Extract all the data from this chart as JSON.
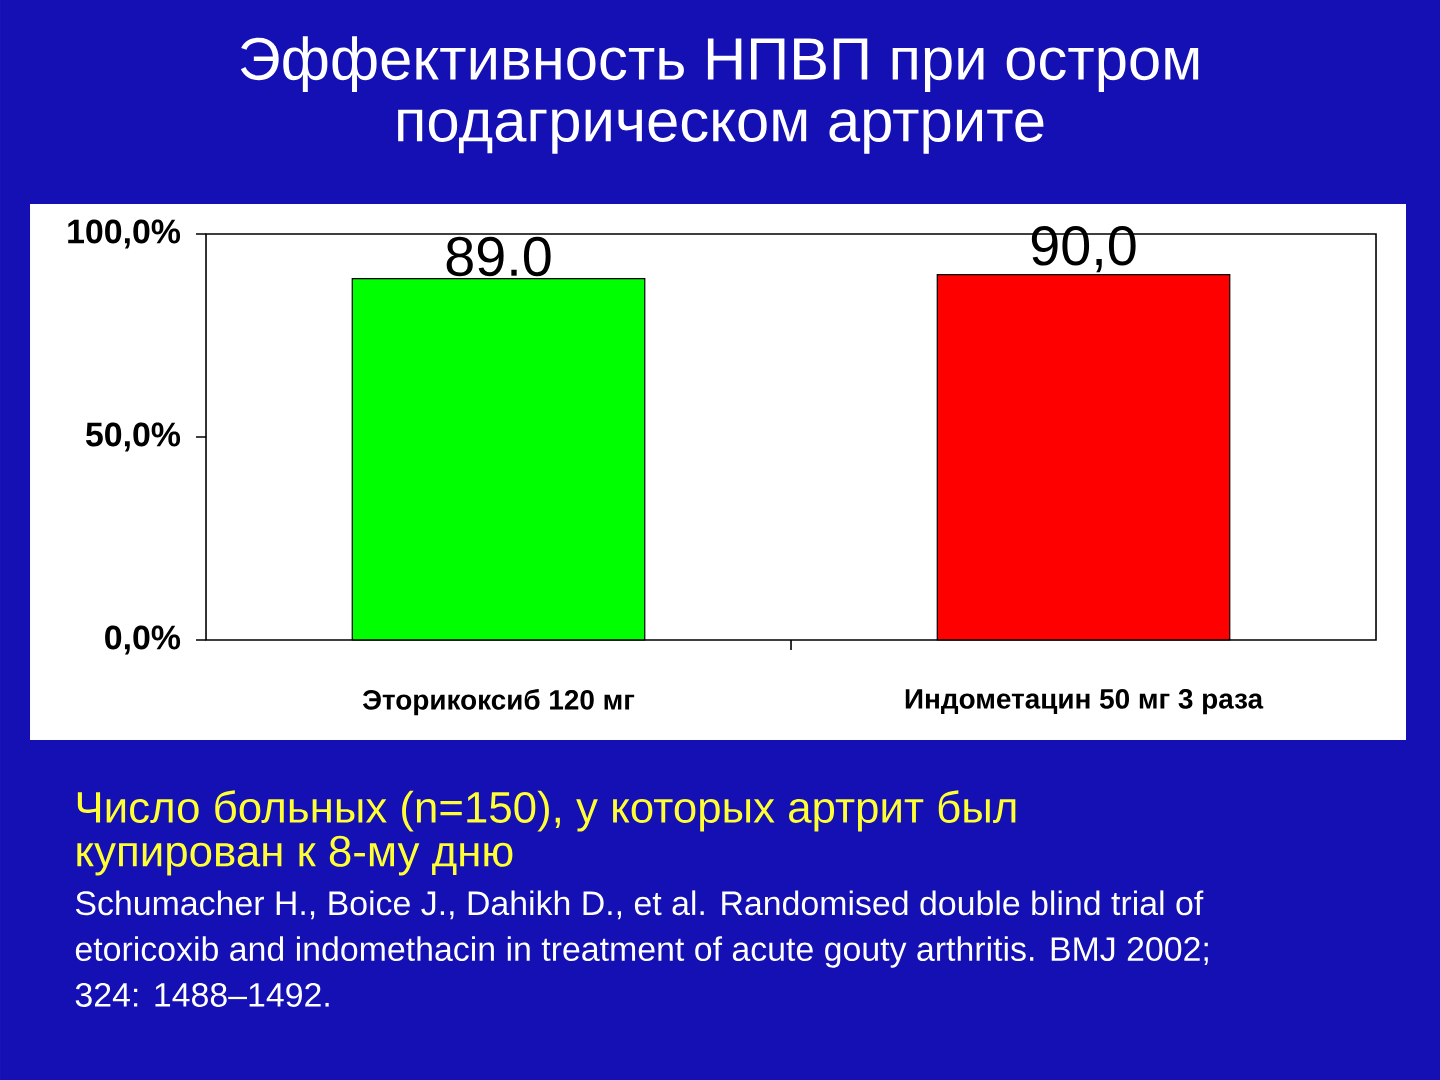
{
  "chart_data": {
    "type": "bar",
    "title": "Эффективность НПВП при остром подагрическом артрите",
    "categories": [
      "Эторикоксиб 120 мг",
      "Индометацин 50 мг 3 раза"
    ],
    "values": [
      89.0,
      90.0
    ],
    "colors": [
      "#00ff00",
      "#ff0000"
    ],
    "value_labels": [
      "89.0",
      "90,0"
    ],
    "ylim": [
      0,
      100
    ],
    "yticks": [
      {
        "value": 0,
        "label": "0,0%"
      },
      {
        "value": 50,
        "label": "50,0%"
      },
      {
        "value": 100,
        "label": "100,0%"
      }
    ],
    "annotations": [
      "Число больных (n=150), у которых артрит был купирован к 8-му дню",
      "Schumacher H., Boice J., Dahikh D., et al. Randomised double blind trial of etoricoxib and indomethacin in treatment of acute gouty arthritis. BMJ 2002; 324: 1488–1492."
    ]
  }
}
